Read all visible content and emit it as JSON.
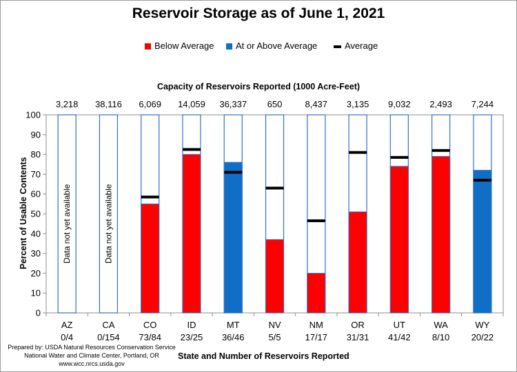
{
  "chart_data": {
    "type": "bar",
    "title": "Reservoir Storage as of June 1, 2021",
    "capacity_title": "Capacity of Reservoirs Reported (1000 Acre-Feet)",
    "xlabel": "State and Number of Reservoirs Reported",
    "ylabel": "Percent of Usable Contents",
    "ylim": [
      0,
      100
    ],
    "yticks": [
      0,
      10,
      20,
      30,
      40,
      50,
      60,
      70,
      80,
      90,
      100
    ],
    "legend": [
      {
        "label": "Below Average",
        "color": "#ff0000",
        "kind": "swatch"
      },
      {
        "label": "At or Above Average",
        "color": "#0f6fc6",
        "kind": "swatch"
      },
      {
        "label": "Average",
        "color": "#000000",
        "kind": "line"
      }
    ],
    "colors": {
      "below": "#ff0000",
      "above": "#0f6fc6",
      "outline": "#2f6fc9",
      "average": "#000000"
    },
    "categories": [
      "AZ",
      "CA",
      "CO",
      "ID",
      "MT",
      "NV",
      "NM",
      "OR",
      "UT",
      "WA",
      "WY"
    ],
    "reservoirs_reported": [
      "0/4",
      "0/154",
      "73/84",
      "23/25",
      "36/46",
      "5/5",
      "17/17",
      "31/31",
      "41/42",
      "8/10",
      "20/22"
    ],
    "capacity": [
      "3,218",
      "38,116",
      "6,069",
      "14,059",
      "36,337",
      "650",
      "8,437",
      "3,135",
      "9,032",
      "2,493",
      "7,244"
    ],
    "values": [
      null,
      null,
      55,
      80,
      76,
      37,
      20,
      51,
      74,
      79,
      72
    ],
    "average": [
      null,
      null,
      58.5,
      82.5,
      71,
      63,
      46.5,
      81,
      78.5,
      82,
      67
    ],
    "status": [
      "none",
      "none",
      "below",
      "below",
      "above",
      "below",
      "below",
      "below",
      "below",
      "below",
      "above"
    ],
    "no_data_label": "Data not yet available"
  },
  "credit": {
    "line1": "Prepared by: USDA Natural Resources Conservation Service",
    "line2": "National Water and Climate Center, Portland, OR",
    "line3": "www.wcc.nrcs.usda.gov"
  }
}
